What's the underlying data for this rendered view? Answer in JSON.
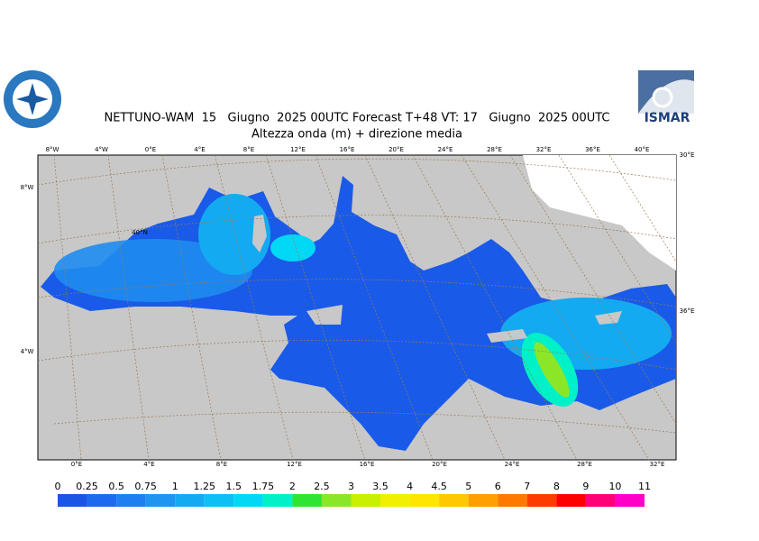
{
  "header": {
    "title_line1": "NETTUNO-WAM  15   Giugno  2025 00UTC Forecast T+48 VT: 17   Giugno  2025 00UTC",
    "title_line2": "Altezza onda (m) + direzione media",
    "logo_right": "ISMAR"
  },
  "map": {
    "top_labels": [
      "8°W",
      "4°W",
      "0°E",
      "4°E",
      "8°E",
      "12°E",
      "16°E",
      "20°E",
      "24°E",
      "28°E",
      "32°E",
      "36°E",
      "40°E"
    ],
    "bottom_labels": [
      "0°E",
      "4°E",
      "8°E",
      "12°E",
      "16°E",
      "20°E",
      "24°E",
      "28°E",
      "32°E"
    ],
    "side_labels": [
      "8°W",
      "4°W",
      "40°N",
      "36°E",
      "30°E"
    ]
  },
  "colorbar": {
    "labels": [
      0,
      0.25,
      0.5,
      0.75,
      1,
      1.25,
      1.5,
      1.75,
      2,
      2.5,
      3,
      3.5,
      4,
      4.5,
      5,
      6,
      7,
      8,
      9,
      10,
      11
    ],
    "colors": [
      "#1a55e6",
      "#1e6aef",
      "#1e80f0",
      "#1e95f0",
      "#14aaf2",
      "#0ac0f5",
      "#00d8f5",
      "#00f0c8",
      "#2ee632",
      "#8ce628",
      "#c8f000",
      "#f0f000",
      "#ffe600",
      "#ffc800",
      "#ffa000",
      "#ff7800",
      "#ff3c00",
      "#ff0000",
      "#ff0078",
      "#ff00c8"
    ]
  }
}
